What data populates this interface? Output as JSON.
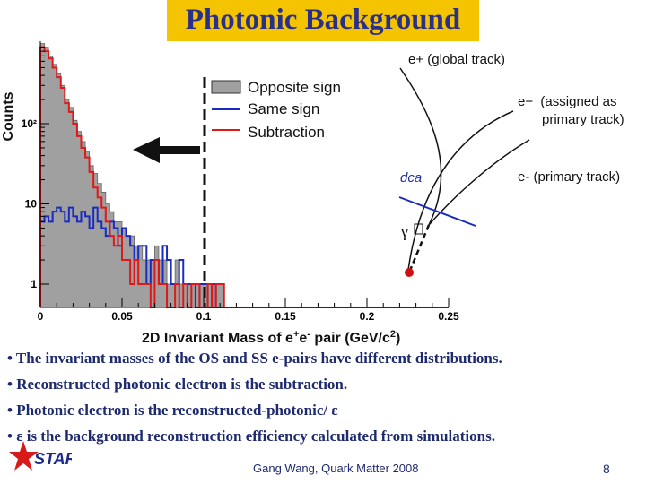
{
  "slide": {
    "title": "Photonic Background",
    "bullets": [
      "• The invariant masses of the OS and SS e-pairs have different distributions.",
      "• Reconstructed photonic electron is the subtraction.",
      "• Photonic electron is the reconstructed-photonic/ ε",
      "• ε is the background reconstruction efficiency calculated from simulations."
    ],
    "footer_author": "Gang Wang, Quark Matter 2008",
    "page_number": "8",
    "logo_text": "STAR"
  },
  "chart_data": {
    "type": "histogram",
    "xlabel": "2D Invariant Mass of e+e- pair (GeV/c2)",
    "ylabel": "Counts",
    "xlim": [
      0,
      0.25
    ],
    "yscale": "log",
    "y_ticks": [
      "1",
      "10",
      "10²"
    ],
    "x_ticks": [
      "0",
      "0.05",
      "0.1",
      "0.15",
      "0.2",
      "0.25"
    ],
    "legend": [
      "Opposite sign",
      "Same sign",
      "Subtraction"
    ],
    "cut_value": 0.1,
    "colors": {
      "opposite": "#a0a0a0",
      "same": "#1a2cbf",
      "subtraction": "#e01818"
    },
    "bin_width": 0.0025,
    "series": [
      {
        "name": "Opposite sign",
        "values": [
          1000,
          900,
          700,
          550,
          420,
          300,
          200,
          160,
          110,
          80,
          60,
          45,
          30,
          24,
          18,
          14,
          10,
          8,
          6,
          6,
          5,
          4,
          4,
          3,
          3,
          2,
          2,
          2,
          3,
          2,
          2,
          1,
          1,
          2,
          1,
          1,
          1,
          1,
          1,
          1,
          1,
          1,
          1,
          1,
          1,
          0,
          0,
          0,
          0,
          0,
          0,
          0,
          0,
          0,
          0,
          0,
          0,
          0,
          0,
          0,
          0,
          0,
          0,
          0,
          0,
          0,
          0,
          0,
          0,
          0,
          0,
          0,
          0,
          0,
          0,
          0,
          0,
          0,
          0,
          0,
          0,
          0,
          0,
          0,
          0,
          0,
          0,
          0,
          0,
          0,
          0,
          0,
          0,
          0,
          0,
          0,
          0,
          0,
          0,
          0
        ]
      },
      {
        "name": "Same sign",
        "values": [
          6,
          7,
          6,
          8,
          9,
          8,
          6,
          9,
          7,
          6,
          8,
          7,
          5,
          9,
          6,
          5,
          4,
          6,
          5,
          3,
          5,
          4,
          3,
          2,
          3,
          3,
          1,
          2,
          2,
          1,
          3,
          2,
          1,
          1,
          2,
          1,
          1,
          1,
          0,
          1,
          1,
          0,
          1,
          0,
          0,
          0,
          0,
          0,
          0,
          0,
          0,
          0,
          0,
          0,
          0,
          0,
          0,
          0,
          0,
          0,
          0,
          0,
          0,
          0,
          0,
          0,
          0,
          0,
          0,
          0,
          0,
          0,
          0,
          0,
          0,
          0,
          0,
          0,
          0,
          0,
          0,
          0,
          0,
          0,
          0,
          0,
          0,
          0,
          0,
          0,
          0,
          0,
          0,
          0,
          0,
          0,
          0,
          0,
          0,
          0
        ]
      },
      {
        "name": "Subtraction",
        "values": [
          900,
          800,
          650,
          500,
          380,
          280,
          180,
          140,
          100,
          70,
          50,
          38,
          25,
          16,
          12,
          9,
          6,
          4,
          3,
          4,
          2,
          2,
          1,
          2,
          1,
          1,
          1,
          0,
          2,
          1,
          1,
          0,
          0,
          1,
          0,
          1,
          0,
          1,
          1,
          0,
          0,
          1,
          0,
          1,
          1,
          0,
          0,
          0,
          0,
          0,
          0,
          0,
          0,
          0,
          0,
          0,
          0,
          0,
          0,
          0,
          0,
          0,
          0,
          0,
          0,
          0,
          0,
          0,
          0,
          0,
          0,
          0,
          0,
          0,
          0,
          0,
          0,
          0,
          0,
          0,
          0,
          0,
          0,
          0,
          0,
          0,
          0,
          0,
          0,
          0,
          0,
          0,
          0,
          0,
          0,
          0,
          0,
          0,
          0,
          0
        ]
      }
    ]
  },
  "diagram": {
    "e_plus_label": "e+ (global track)",
    "e_minus_assigned_label": "e- (assigned as primary track)",
    "e_minus_primary_label": "e- (primary track)",
    "dca_label": "dca",
    "gamma_label": "γ"
  }
}
